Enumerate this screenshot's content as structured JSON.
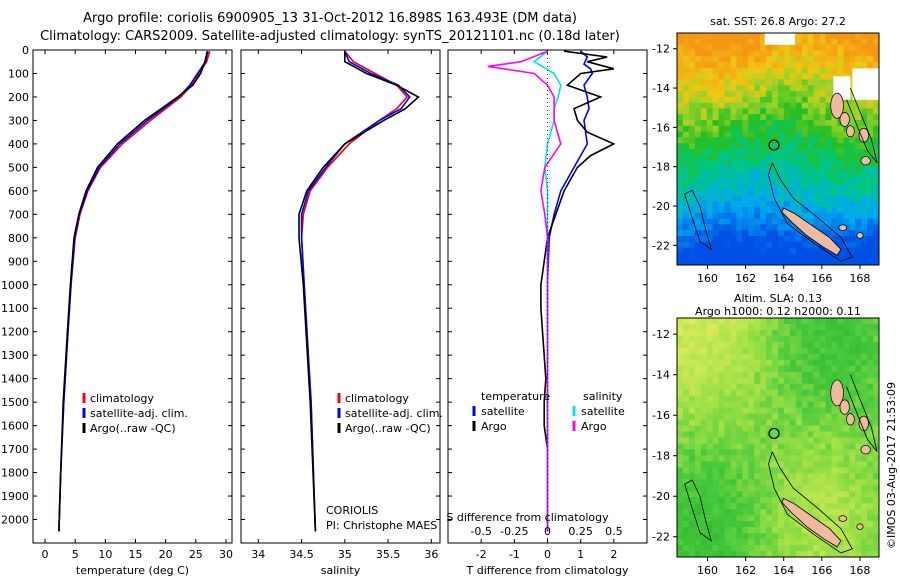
{
  "titles": {
    "line1": "Argo profile: coriolis 6900905_13 31-Oct-2012 16.898S 163.493E (DM data)",
    "line2": "Climatology: CARS2009. Satellite-adjusted climatology: synTS_20121101.nc (0.18d later)"
  },
  "colors": {
    "climatology": "#ff0000",
    "satellite": "#0000ff",
    "argo": "#000000",
    "sat_salinity": "#00e5ee",
    "argo_salinity": "#ff00ff"
  },
  "chart_data": [
    {
      "type": "line",
      "panel": "temperature",
      "xlabel": "temperature (deg C)",
      "ylabel": "",
      "xlim": [
        -2,
        31
      ],
      "ylim": [
        2100,
        0
      ],
      "xticks": [
        0,
        5,
        10,
        15,
        20,
        25,
        30
      ],
      "yticks": [
        0,
        100,
        200,
        300,
        400,
        500,
        600,
        700,
        800,
        900,
        1000,
        1100,
        1200,
        1300,
        1400,
        1500,
        1600,
        1700,
        1800,
        1900,
        2000
      ],
      "legend": [
        "climatology",
        "satellite-adj. clim.",
        "Argo(..raw -QC)"
      ],
      "series": [
        {
          "name": "climatology",
          "depth": [
            5,
            50,
            100,
            150,
            200,
            300,
            400,
            500,
            600,
            700,
            800,
            1000,
            1200,
            1500,
            1800,
            2050
          ],
          "values": [
            27.3,
            26.8,
            25.5,
            24.3,
            22.5,
            17.5,
            12.8,
            9.2,
            7.1,
            5.8,
            5.0,
            4.3,
            3.8,
            3.1,
            2.6,
            2.3
          ]
        },
        {
          "name": "satellite-adj. clim.",
          "depth": [
            5,
            50,
            100,
            150,
            200,
            300,
            400,
            500,
            600,
            700,
            800,
            1000,
            1200,
            1500,
            1800,
            2050
          ],
          "values": [
            27.0,
            26.6,
            25.3,
            24.0,
            22.2,
            17.0,
            12.4,
            9.0,
            7.0,
            5.7,
            4.9,
            4.3,
            3.8,
            3.1,
            2.6,
            2.3
          ]
        },
        {
          "name": "Argo(..raw -QC)",
          "depth": [
            5,
            50,
            100,
            150,
            200,
            300,
            400,
            500,
            600,
            700,
            800,
            1000,
            1200,
            1500,
            1800,
            2050
          ],
          "values": [
            26.9,
            26.5,
            25.8,
            24.5,
            22.0,
            16.5,
            12.0,
            8.7,
            6.8,
            5.6,
            4.8,
            4.2,
            3.7,
            3.0,
            2.6,
            2.3
          ]
        }
      ]
    },
    {
      "type": "line",
      "panel": "salinity",
      "xlabel": "salinity",
      "xlim": [
        33.8,
        36.1
      ],
      "ylim": [
        2100,
        0
      ],
      "xticks": [
        34,
        34.5,
        35,
        35.5,
        36
      ],
      "legend": [
        "climatology",
        "satellite-adj. clim.",
        "Argo(..raw -QC)"
      ],
      "annotation": [
        "CORIOLIS",
        "PI: Christophe MAES"
      ],
      "series": [
        {
          "name": "climatology",
          "depth": [
            5,
            50,
            100,
            150,
            200,
            250,
            300,
            400,
            500,
            600,
            700,
            800,
            1000,
            1500,
            2050
          ],
          "values": [
            35.0,
            35.1,
            35.35,
            35.6,
            35.72,
            35.6,
            35.4,
            35.05,
            34.8,
            34.6,
            34.52,
            34.5,
            34.53,
            34.61,
            34.66
          ]
        },
        {
          "name": "satellite-adj. clim.",
          "depth": [
            5,
            50,
            100,
            150,
            200,
            250,
            300,
            400,
            500,
            600,
            700,
            800,
            1000,
            1500,
            2050
          ],
          "values": [
            35.0,
            35.05,
            35.3,
            35.62,
            35.75,
            35.65,
            35.4,
            35.0,
            34.78,
            34.58,
            34.5,
            34.5,
            34.53,
            34.61,
            34.66
          ]
        },
        {
          "name": "Argo(..raw -QC)",
          "depth": [
            5,
            50,
            100,
            150,
            200,
            250,
            300,
            400,
            500,
            600,
            700,
            800,
            1000,
            1500,
            2050
          ],
          "values": [
            35.0,
            35.0,
            35.25,
            35.6,
            35.85,
            35.7,
            35.45,
            35.0,
            34.75,
            34.56,
            34.47,
            34.47,
            34.52,
            34.6,
            34.66
          ]
        }
      ]
    },
    {
      "type": "line",
      "panel": "differences",
      "xlabel": "T difference from climatology",
      "xlabel_top": "S difference from climatology",
      "xlim": [
        -3,
        3
      ],
      "ylim": [
        2100,
        0
      ],
      "xticks": [
        -2,
        -1,
        0,
        1,
        2
      ],
      "xticklabels": [
        "-2",
        "-1",
        "0",
        "1",
        "2"
      ],
      "sticks": [
        -0.5,
        -0.25,
        0,
        0.25,
        0.5
      ],
      "sticklabels": [
        "-0.5",
        "-0.25",
        "0",
        "0.25",
        "0.5"
      ],
      "legend_headers": [
        "temperature",
        "salinity"
      ],
      "legend": [
        "satellite",
        "Argo",
        "satellite",
        "Argo"
      ],
      "series": [
        {
          "name": "T satellite",
          "depth": [
            5,
            30,
            60,
            80,
            100,
            150,
            200,
            250,
            300,
            350,
            400,
            500,
            600,
            700,
            800,
            1000,
            2050
          ],
          "values": [
            1.0,
            1.2,
            1.1,
            1.3,
            1.35,
            1.1,
            1.2,
            1.25,
            1.1,
            1.15,
            1.2,
            0.8,
            0.4,
            0.2,
            0.05,
            0.0,
            0.0
          ]
        },
        {
          "name": "T Argo",
          "depth": [
            5,
            30,
            50,
            80,
            100,
            150,
            200,
            250,
            300,
            350,
            400,
            450,
            500,
            600,
            700,
            800,
            900,
            1000,
            1100,
            1200,
            1300,
            1400,
            1500,
            1600,
            1700,
            1800,
            1900,
            2050
          ],
          "values": [
            0.5,
            1.8,
            1.2,
            2.0,
            1.0,
            0.6,
            1.6,
            0.8,
            0.9,
            1.2,
            2.0,
            1.3,
            0.9,
            0.5,
            0.25,
            0.0,
            -0.1,
            -0.2,
            -0.2,
            -0.15,
            -0.1,
            -0.05,
            -0.1,
            -0.1,
            0.0,
            0.0,
            0.0,
            0.0
          ]
        },
        {
          "name": "S satellite",
          "depth": [
            5,
            50,
            100,
            150,
            200,
            250,
            300,
            400,
            500,
            600,
            700,
            800,
            1000,
            2050
          ],
          "values": [
            0.0,
            -0.1,
            0.05,
            0.1,
            0.08,
            0.05,
            0.05,
            0.0,
            -0.02,
            0.0,
            0.0,
            0.0,
            0.0,
            0.0
          ]
        },
        {
          "name": "S Argo",
          "depth": [
            5,
            50,
            70,
            100,
            150,
            200,
            300,
            400,
            500,
            600,
            700,
            800,
            1000,
            2050
          ],
          "values": [
            0.0,
            -0.2,
            -0.45,
            -0.1,
            0.0,
            0.05,
            0.05,
            0.1,
            -0.02,
            -0.05,
            -0.02,
            0.0,
            0.0,
            0.0
          ]
        }
      ]
    },
    {
      "type": "heatmap",
      "panel": "sat-sst-map",
      "title": "sat. SST: 26.8 Argo: 27.2",
      "xlim": [
        158.4,
        169
      ],
      "ylim": [
        -23,
        -11.2
      ],
      "xticks": [
        160,
        162,
        164,
        166,
        168
      ],
      "yticks": [
        -12,
        -14,
        -16,
        -18,
        -20,
        -22
      ],
      "xticklabels": [
        "160",
        "162",
        "164",
        "166",
        "168"
      ],
      "yticklabels": [
        "-12",
        "-14",
        "-16",
        "-18",
        "-20",
        "-22"
      ],
      "argo_position": [
        163.49,
        -16.9
      ]
    },
    {
      "type": "heatmap",
      "panel": "sla-map",
      "title1": "Altim. SLA: 0.13",
      "title2": "Argo h1000: 0.12 h2000: 0.11",
      "xlim": [
        158.4,
        169
      ],
      "ylim": [
        -23,
        -11.2
      ],
      "xticks": [
        160,
        162,
        164,
        166,
        168
      ],
      "yticks": [
        -12,
        -14,
        -16,
        -18,
        -20,
        -22
      ],
      "xticklabels": [
        "160",
        "162",
        "164",
        "166",
        "168"
      ],
      "yticklabels": [
        "-12",
        "-14",
        "-16",
        "-18",
        "-20",
        "-22"
      ],
      "argo_position": [
        163.49,
        -16.9
      ]
    }
  ],
  "footer": {
    "stamp": "©IMOS 03-Aug-2017 21:53:09"
  }
}
